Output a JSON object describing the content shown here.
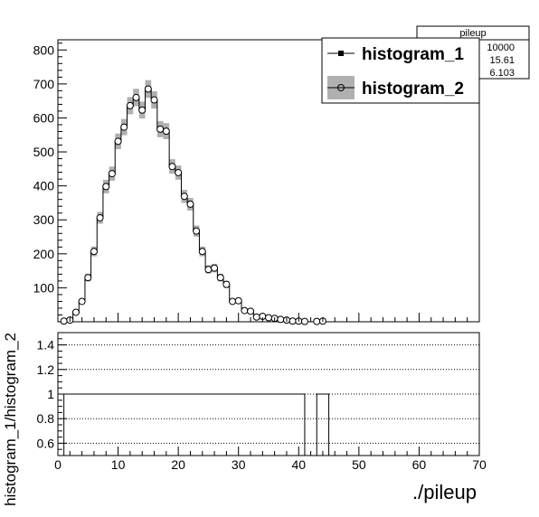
{
  "chart_data": [
    {
      "type": "histogram",
      "xlabel": "./pileup",
      "ylabel": "",
      "xlim": [
        0,
        70
      ],
      "ylim": [
        0,
        830
      ],
      "y_ticks": [
        100,
        200,
        300,
        400,
        500,
        600,
        700,
        800
      ],
      "x_ticks": [
        0,
        10,
        20,
        30,
        40,
        50,
        60,
        70
      ],
      "bins": [
        1,
        2,
        3,
        4,
        5,
        6,
        7,
        8,
        9,
        10,
        11,
        12,
        13,
        14,
        15,
        16,
        17,
        18,
        19,
        20,
        21,
        22,
        23,
        24,
        25,
        26,
        27,
        28,
        29,
        30,
        31,
        32,
        33,
        34,
        35,
        36,
        37,
        38,
        39,
        40,
        41,
        42,
        43,
        44,
        45
      ],
      "series": [
        {
          "name": "histogram_1",
          "style": "line",
          "values": [
            2,
            5,
            28,
            60,
            130,
            207,
            306,
            398,
            436,
            531,
            573,
            636,
            660,
            623,
            685,
            653,
            567,
            561,
            457,
            439,
            369,
            346,
            267,
            207,
            154,
            158,
            130,
            110,
            60,
            62,
            33,
            31,
            14,
            16,
            12,
            10,
            7,
            5,
            2,
            2,
            1,
            0,
            1,
            2,
            0
          ]
        },
        {
          "name": "histogram_2",
          "style": "markers with grey error band",
          "values": [
            2,
            5,
            28,
            60,
            130,
            207,
            306,
            398,
            436,
            531,
            573,
            636,
            660,
            623,
            685,
            653,
            567,
            561,
            457,
            439,
            369,
            346,
            267,
            207,
            154,
            158,
            130,
            110,
            60,
            62,
            33,
            31,
            14,
            16,
            12,
            10,
            7,
            5,
            2,
            2,
            1,
            0,
            1,
            2,
            0
          ]
        }
      ],
      "legend": {
        "position": "top-right",
        "entries": [
          "histogram_1",
          "histogram_2"
        ]
      },
      "stats_box": {
        "title": "pileup",
        "values": [
          "10000",
          "15.61",
          "6.103"
        ]
      }
    },
    {
      "type": "step",
      "xlabel": "",
      "ylabel": "histogram_1/histogram_2",
      "xlim": [
        0,
        70
      ],
      "ylim": [
        0.5,
        1.5
      ],
      "y_ticks": [
        0.6,
        0.8,
        1,
        1.2,
        1.4
      ],
      "y_tick_labels": [
        "0.6",
        "0.8",
        "1",
        "1.2",
        "1.4"
      ],
      "x_ticks": [
        0,
        10,
        20,
        30,
        40,
        50,
        60,
        70
      ],
      "grid": "horizontal dotted",
      "segments": [
        {
          "x": [
            1,
            41
          ],
          "y": 1
        },
        {
          "x": [
            43,
            45
          ],
          "y": 1
        }
      ]
    }
  ],
  "colors": {
    "band": "#b0b0b0",
    "line": "#000000",
    "grid": "#000000"
  }
}
